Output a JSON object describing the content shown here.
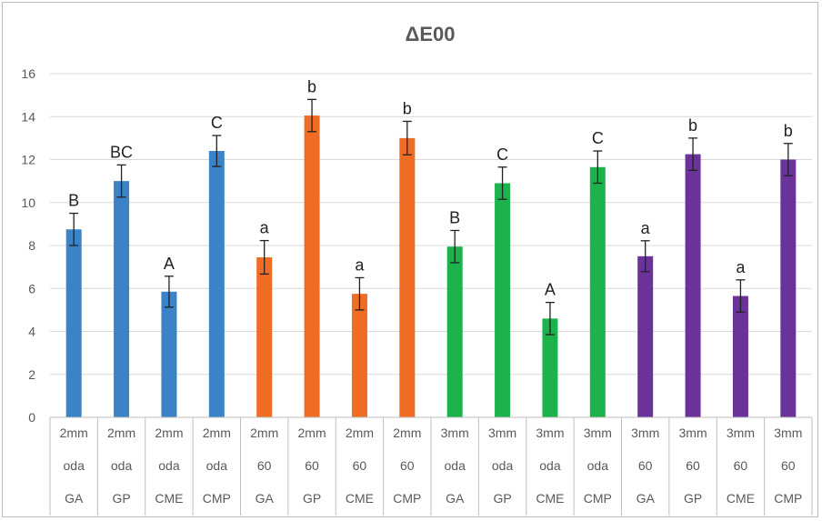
{
  "chart_data": {
    "type": "bar",
    "title": "ΔE00",
    "ylim": [
      0,
      16
    ],
    "yticks": [
      0,
      2,
      4,
      6,
      8,
      10,
      12,
      14,
      16
    ],
    "grid": true,
    "categories": [
      [
        "2mm",
        "oda",
        "GA"
      ],
      [
        "2mm",
        "oda",
        "GP"
      ],
      [
        "2mm",
        "oda",
        "CME"
      ],
      [
        "2mm",
        "oda",
        "CMP"
      ],
      [
        "2mm",
        "60",
        "GA"
      ],
      [
        "2mm",
        "60",
        "GP"
      ],
      [
        "2mm",
        "60",
        "CME"
      ],
      [
        "2mm",
        "60",
        "CMP"
      ],
      [
        "3mm",
        "oda",
        "GA"
      ],
      [
        "3mm",
        "oda",
        "GP"
      ],
      [
        "3mm",
        "oda",
        "CME"
      ],
      [
        "3mm",
        "oda",
        "CMP"
      ],
      [
        "3mm",
        "60",
        "GA"
      ],
      [
        "3mm",
        "60",
        "GP"
      ],
      [
        "3mm",
        "60",
        "CME"
      ],
      [
        "3mm",
        "60",
        "CMP"
      ]
    ],
    "values": [
      8.75,
      11.0,
      5.85,
      12.4,
      7.45,
      14.05,
      5.75,
      13.0,
      7.95,
      10.9,
      4.6,
      11.65,
      7.5,
      12.25,
      5.65,
      12.0
    ],
    "errors": [
      0.75,
      0.75,
      0.72,
      0.72,
      0.78,
      0.75,
      0.75,
      0.78,
      0.75,
      0.75,
      0.75,
      0.75,
      0.72,
      0.75,
      0.75,
      0.75
    ],
    "labels": [
      "B",
      "BC",
      "A",
      "C",
      "a",
      "b",
      "a",
      "b",
      "B",
      "C",
      "A",
      "C",
      "a",
      "b",
      "a",
      "b"
    ],
    "colors": [
      "#3a83c6",
      "#3a83c6",
      "#3a83c6",
      "#3a83c6",
      "#ef6c24",
      "#ef6c24",
      "#ef6c24",
      "#ef6c24",
      "#1db34c",
      "#1db34c",
      "#1db34c",
      "#1db34c",
      "#6b3399",
      "#6b3399",
      "#6b3399",
      "#6b3399"
    ],
    "grid_color": "#d9d9d9",
    "axis_color": "#bfbfbf"
  }
}
